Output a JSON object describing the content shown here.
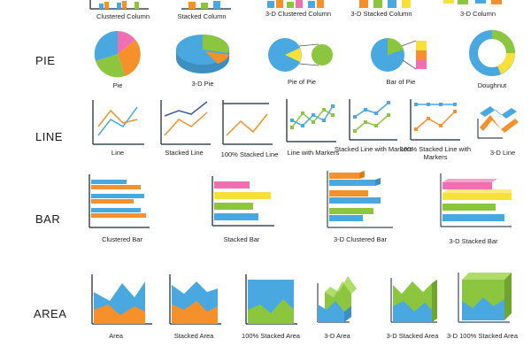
{
  "categories": {
    "pie": "PIE",
    "line": "LINE",
    "bar": "BAR",
    "area": "AREA"
  },
  "column_labels": [
    "Clustered Column",
    "Stacked Column",
    "3-D Clustered Column",
    "3-D Stacked Column",
    "3-D Column"
  ],
  "pie_labels": [
    "Pie",
    "3-D Pie",
    "Pie of Pie",
    "Bar of Pie",
    "Doughnut"
  ],
  "line_labels": [
    "Line",
    "Stacked Line",
    "100% Stacked Line",
    "Line with Markers",
    "Stacked Line with Markers",
    "100% Stacked Line with Markers",
    "3-D Line"
  ],
  "bar_labels": [
    "Clustered Bar",
    "Stacked Bar",
    "3-D Clustered Bar",
    "3-D Stacked Bar"
  ],
  "area_labels": [
    "Area",
    "Stacked Area",
    "100% Stacked Area",
    "3-D Area",
    "3-D Stacked Area",
    "3-D 100% Stacked Area"
  ],
  "colors": {
    "blue": "#4aa8e0",
    "orange": "#f5902a",
    "green": "#8cc63f",
    "pink": "#f06fb0",
    "yellow": "#f7e03a",
    "axis": "#3a4a5a"
  }
}
